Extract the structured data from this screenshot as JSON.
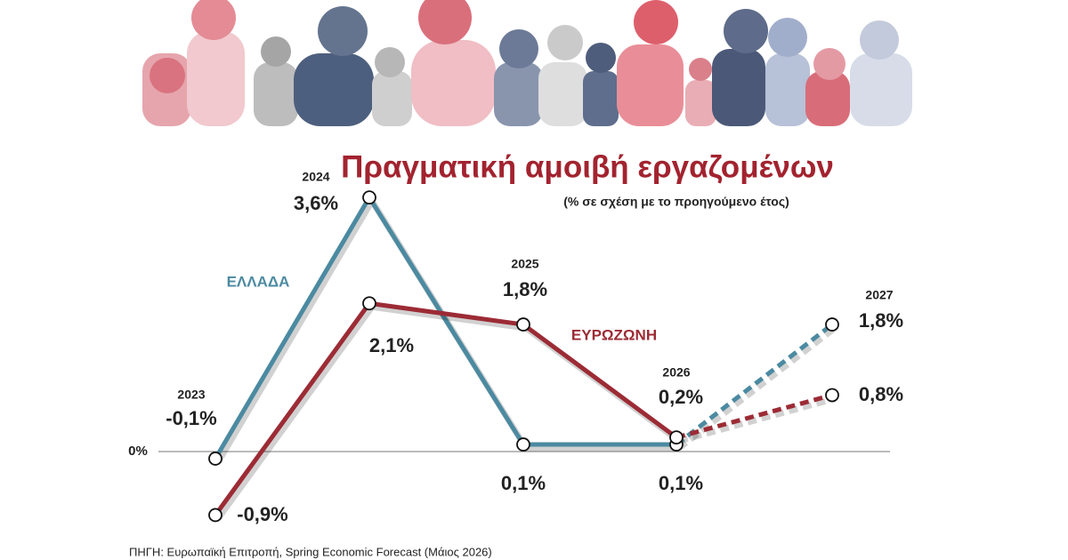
{
  "chart_data": {
    "type": "line",
    "title": "Πραγματική αμοιβή εργαζομένων",
    "subtitle": "(% σε σχέση με το προηγούμενο έτος)",
    "source": "ΠΗΓΗ: Ευρωπαϊκή Επιτροπή, Spring Economic Forecast (Μάιος 2026)",
    "categories": [
      "2023",
      "2024",
      "2025",
      "2026",
      "2027"
    ],
    "series": [
      {
        "name": "ΕΛΛΑΔΑ",
        "color": "#4b8aa1",
        "values": [
          -0.1,
          3.6,
          0.1,
          0.1,
          1.8
        ],
        "value_labels": [
          "-0,1%",
          "3,6%",
          "0,1%",
          "0,1%",
          "1,8%"
        ]
      },
      {
        "name": "ΕΥΡΩΖΩΝΗ",
        "color": "#9c2b35",
        "values": [
          -0.9,
          2.1,
          1.8,
          0.2,
          0.8
        ],
        "value_labels": [
          "-0,9%",
          "2,1%",
          "1,8%",
          "0,2%",
          "0,8%"
        ]
      }
    ],
    "dashed_from": 3,
    "ylim": [
      -1,
      4
    ],
    "yticks": [
      {
        "value": 0,
        "label": "0%"
      }
    ]
  }
}
